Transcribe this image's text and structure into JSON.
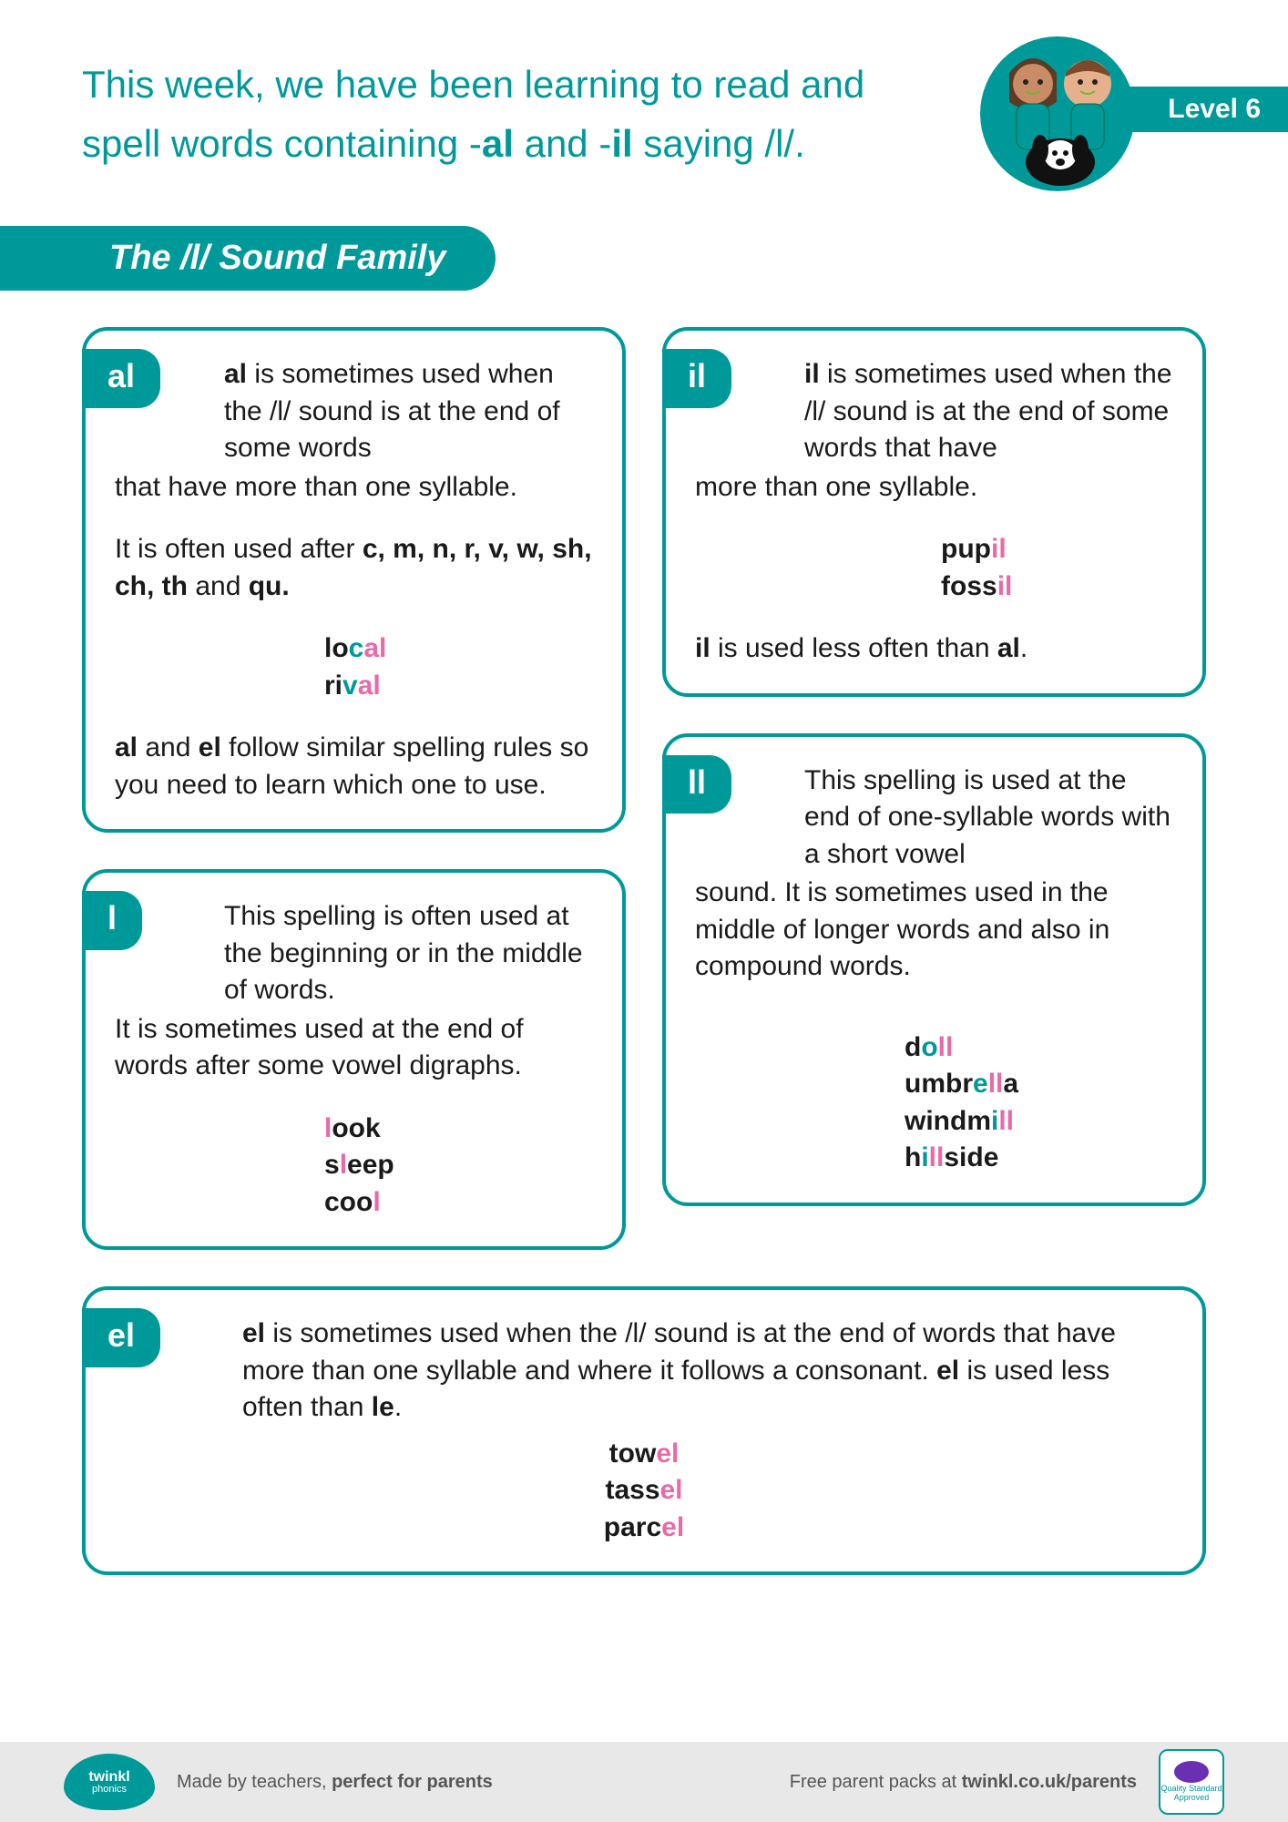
{
  "colors": {
    "primary": "#009999",
    "pink": "#e86aa8",
    "footer_bg": "#e8e8e8",
    "text": "#1a1a1a"
  },
  "header": {
    "intro_html": "This week, we have been learning to read and spell words containing -<b>al</b> and -<b>il</b> saying /l/.",
    "level_label": "Level 6"
  },
  "section_title": "The /l/ Sound Family",
  "cards": {
    "al": {
      "tag": "al",
      "lead_html": "<b>al</b> is sometimes used when the /l/ sound is at the end of some words",
      "rest_html": "that have more than one syllable.",
      "para2_html": "It is often used after <b>c, m, n, r, v, w, sh, ch, th</b> and <b>qu.</b>",
      "examples": [
        "lo<span class='hl-teal'>c</span><span class='hl-pink'>al</span>",
        "ri<span class='hl-teal'>v</span><span class='hl-pink'>al</span>"
      ],
      "para3_html": "<b>al</b> and <b>el</b> follow similar spelling rules so you need to learn which one to use."
    },
    "l": {
      "tag": "l",
      "lead_html": "This spelling is often used at the beginning or in the middle of words.",
      "rest_html": "It is sometimes used at the end of words after some vowel digraphs.",
      "examples": [
        "<span class='hl-pink'>l</span>ook",
        "s<span class='hl-pink'>l</span>eep",
        "coo<span class='hl-pink'>l</span>"
      ]
    },
    "il": {
      "tag": "il",
      "lead_html": "<b>il</b> is sometimes used when the /l/ sound is at the end of some words that have",
      "rest_html": "more than one syllable.",
      "examples": [
        "pup<span class='hl-pink'>il</span>",
        "foss<span class='hl-pink'>il</span>"
      ],
      "para2_html": "<b>il</b> is used less often than <b>al</b>."
    },
    "ll": {
      "tag": "ll",
      "lead_html": "This spelling is used at the end of one-syllable words with a short vowel",
      "rest_html": "sound. It is sometimes used in the middle of longer words and also in compound words.",
      "examples": [
        "d<span class='hl-teal'>o</span><span class='hl-pink'>ll</span>",
        "umbr<span class='hl-teal'>e</span><span class='hl-pink'>ll</span>a",
        "windm<span class='hl-teal'>i</span><span class='hl-pink'>ll</span>",
        "h<span class='hl-teal'>i</span><span class='hl-pink'>ll</span>side"
      ]
    },
    "el": {
      "tag": "el",
      "lead_html": "<b>el</b> is sometimes used when the /l/ sound is at the end of words that have more than one syllable and where it follows a consonant. <b>el</b> is used less often than <b>le</b>.",
      "examples": [
        "tow<span class='hl-pink'>el</span>",
        "tass<span class='hl-pink'>el</span>",
        "parc<span class='hl-pink'>el</span>"
      ]
    }
  },
  "footer": {
    "logo_top": "twinkl",
    "logo_bottom": "phonics",
    "left_html": "Made by teachers, <b>perfect for parents</b>",
    "right_html": "Free parent packs at <b>twinkl.co.uk/parents</b>",
    "stamp_brand": "twinkl",
    "stamp_text": "Quality Standard Approved"
  }
}
